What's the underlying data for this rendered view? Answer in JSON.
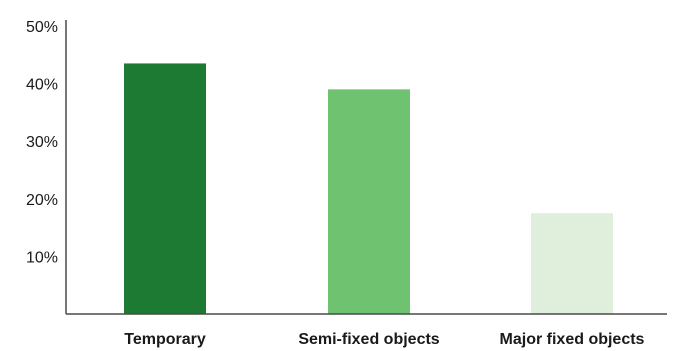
{
  "chart_data": {
    "type": "bar",
    "categories": [
      "Temporary",
      "Semi-fixed objects",
      "Major fixed objects"
    ],
    "values": [
      43.5,
      39,
      17.5
    ],
    "ylim": [
      0,
      50
    ],
    "yticks": [
      10,
      20,
      30,
      40,
      50
    ],
    "ytick_labels": [
      "10%",
      "20%",
      "30%",
      "40%",
      "50%"
    ],
    "title": "",
    "xlabel": "",
    "ylabel": "",
    "grid": false,
    "bar_colors": [
      "#1d7a33",
      "#6fc370",
      "#e0eedc"
    ]
  }
}
